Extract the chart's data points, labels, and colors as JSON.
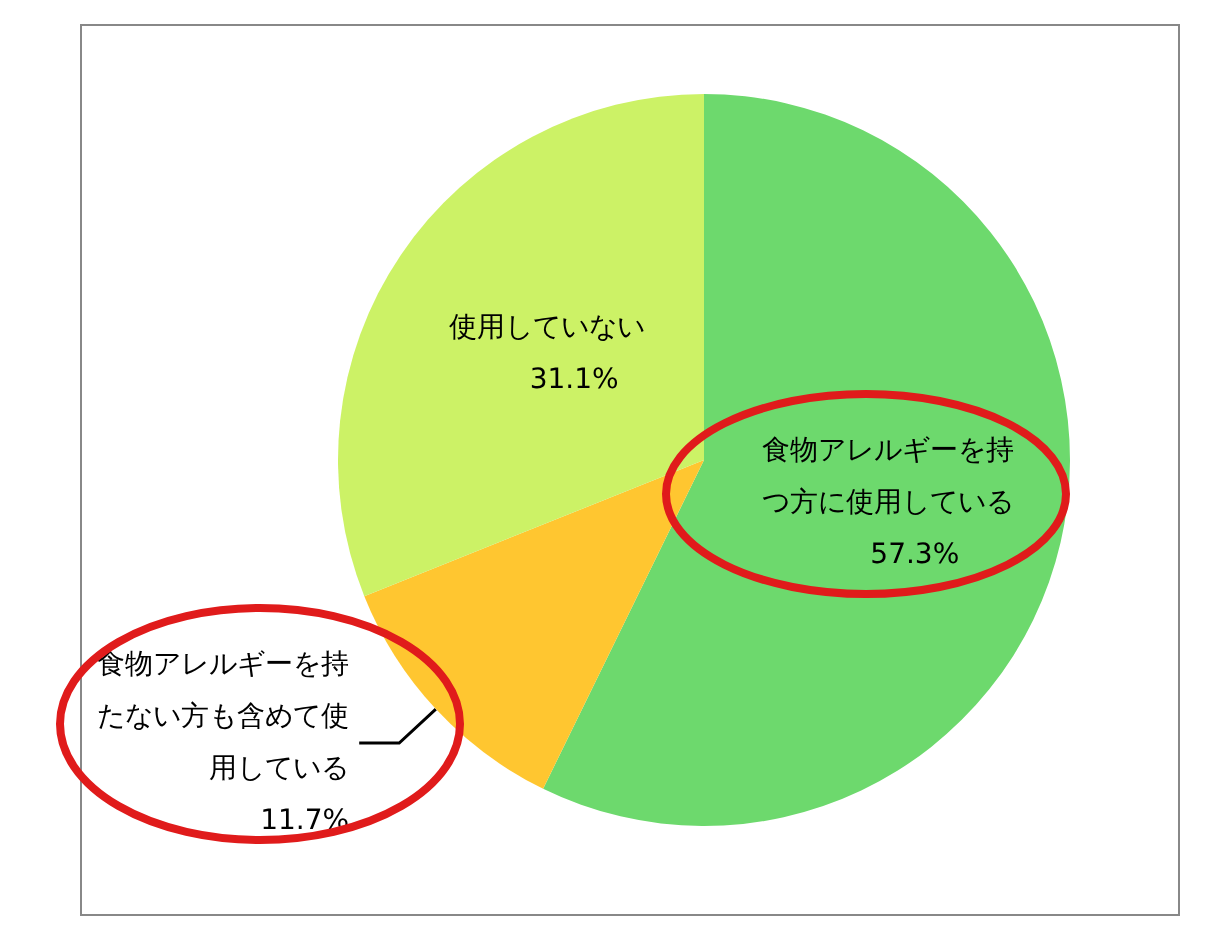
{
  "chart_data": {
    "type": "pie",
    "categories": [
      "食物アレルギーを持つ方に使用している",
      "食物アレルギーを持たない方も含めて使用している",
      "使用していない"
    ],
    "values": [
      57.3,
      11.7,
      31.1
    ],
    "value_labels": [
      "57.3%",
      "11.7%",
      "31.1%"
    ],
    "colors": [
      "#6dd96d",
      "#ffc630",
      "#ccf266"
    ],
    "legend": false
  }
}
